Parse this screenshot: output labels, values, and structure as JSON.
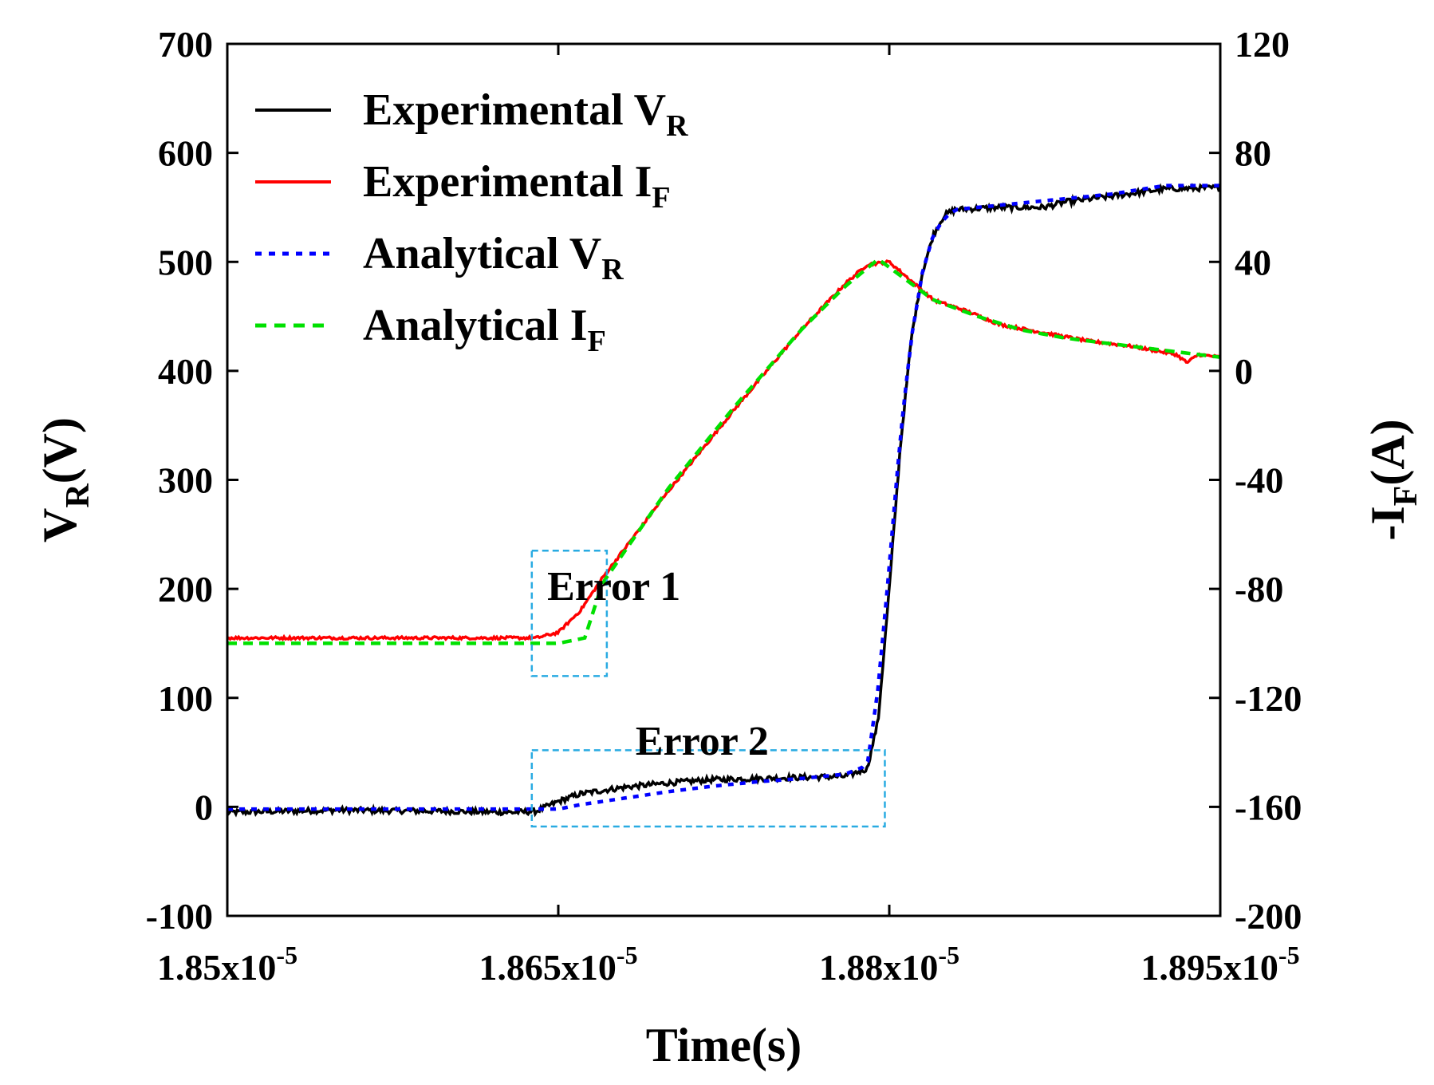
{
  "chart_data": {
    "type": "line",
    "xlabel": "Time(s)",
    "ylabel_left": {
      "main": "V",
      "sub": "R",
      "tail": "(V)"
    },
    "ylabel_right": {
      "main": "-I",
      "sub": "F",
      "tail": "(A)"
    },
    "xlim": [
      1.85e-05,
      1.895e-05
    ],
    "ylim_left": [
      -100,
      700
    ],
    "ylim_right": [
      -200,
      120
    ],
    "x_ticks": [
      {
        "value": 1.85e-05,
        "base": "1.85x10",
        "exp": "-5"
      },
      {
        "value": 1.865e-05,
        "base": "1.865x10",
        "exp": "-5"
      },
      {
        "value": 1.88e-05,
        "base": "1.88x10",
        "exp": "-5"
      },
      {
        "value": 1.895e-05,
        "base": "1.895x10",
        "exp": "-5"
      }
    ],
    "y_left_ticks": [
      {
        "value": -100,
        "label": "-100"
      },
      {
        "value": 0,
        "label": "0"
      },
      {
        "value": 100,
        "label": "100"
      },
      {
        "value": 200,
        "label": "200"
      },
      {
        "value": 300,
        "label": "300"
      },
      {
        "value": 400,
        "label": "400"
      },
      {
        "value": 500,
        "label": "500"
      },
      {
        "value": 600,
        "label": "600"
      },
      {
        "value": 700,
        "label": "700"
      }
    ],
    "y_right_ticks": [
      {
        "value": -200,
        "label": "-200"
      },
      {
        "value": -160,
        "label": "-160"
      },
      {
        "value": -120,
        "label": "-120"
      },
      {
        "value": -80,
        "label": "-80"
      },
      {
        "value": -40,
        "label": "-40"
      },
      {
        "value": 0,
        "label": "0"
      },
      {
        "value": 40,
        "label": "40"
      },
      {
        "value": 80,
        "label": "80"
      },
      {
        "value": 120,
        "label": "120"
      }
    ],
    "legend_position": "top-left",
    "series": [
      {
        "name": "Experimental V",
        "sub": "R",
        "axis": "left",
        "color": "#000000",
        "dash": "solid",
        "noise": 2.5,
        "x": [
          1.85e-05,
          1.855e-05,
          1.86e-05,
          1.863e-05,
          1.864e-05,
          1.865e-05,
          1.866e-05,
          1.868e-05,
          1.87e-05,
          1.872e-05,
          1.874e-05,
          1.876e-05,
          1.878e-05,
          1.879e-05,
          1.8795e-05,
          1.88e-05,
          1.8805e-05,
          1.881e-05,
          1.8815e-05,
          1.882e-05,
          1.8825e-05,
          1.883e-05,
          1.885e-05,
          1.887e-05,
          1.888e-05,
          1.89e-05,
          1.8925e-05,
          1.895e-05
        ],
        "y": [
          -5,
          -3,
          -4,
          -5,
          -4,
          5,
          12,
          18,
          22,
          25,
          26,
          27,
          28,
          35,
          80,
          200,
          330,
          430,
          490,
          525,
          543,
          548,
          550,
          550,
          555,
          560,
          567,
          568
        ]
      },
      {
        "name": "Experimental  I",
        "sub": "F",
        "axis": "right",
        "color": "#ff0000",
        "dash": "solid",
        "noise": 0.5,
        "x": [
          1.85e-05,
          1.86e-05,
          1.864e-05,
          1.865e-05,
          1.866e-05,
          1.867e-05,
          1.87e-05,
          1.873e-05,
          1.876e-05,
          1.878e-05,
          1.879e-05,
          1.88e-05,
          1.881e-05,
          1.882e-05,
          1.8835e-05,
          1.885e-05,
          1.887e-05,
          1.889e-05,
          1.891e-05,
          1.893e-05,
          1.8935e-05,
          1.894e-05,
          1.895e-05
        ],
        "y": [
          -98,
          -98,
          -98,
          -96,
          -88,
          -76,
          -44,
          -14,
          15,
          32,
          39,
          40,
          33,
          26,
          22,
          17,
          14,
          11,
          9,
          6,
          3,
          6,
          5
        ]
      },
      {
        "name": "Analytical V",
        "sub": "R",
        "axis": "left",
        "color": "#0000ff",
        "dash": "dotted",
        "noise": 0,
        "x": [
          1.85e-05,
          1.865e-05,
          1.866e-05,
          1.868e-05,
          1.87e-05,
          1.872e-05,
          1.874e-05,
          1.876e-05,
          1.878e-05,
          1.879e-05,
          1.8795e-05,
          1.88e-05,
          1.8805e-05,
          1.881e-05,
          1.8815e-05,
          1.882e-05,
          1.8825e-05,
          1.883e-05,
          1.885e-05,
          1.887e-05,
          1.89e-05,
          1.8925e-05,
          1.895e-05
        ],
        "y": [
          -2,
          -2,
          2,
          8,
          14,
          19,
          23,
          26,
          30,
          38,
          110,
          220,
          340,
          430,
          490,
          525,
          540,
          548,
          552,
          556,
          562,
          570,
          570
        ]
      },
      {
        "name": "Analytical I",
        "sub": "F",
        "axis": "right",
        "color": "#00e000",
        "dash": "dashed",
        "noise": 0,
        "x": [
          1.85e-05,
          1.86e-05,
          1.865e-05,
          1.8662e-05,
          1.867e-05,
          1.87e-05,
          1.873e-05,
          1.876e-05,
          1.878e-05,
          1.8795e-05,
          1.881e-05,
          1.882e-05,
          1.884e-05,
          1.886e-05,
          1.888e-05,
          1.89e-05,
          1.892e-05,
          1.894e-05,
          1.895e-05
        ],
        "y": [
          -100,
          -100,
          -100,
          -98,
          -78,
          -43,
          -13,
          15,
          31,
          41,
          32,
          26,
          20,
          15,
          12,
          10,
          8,
          6,
          5
        ]
      }
    ],
    "annotations": [
      {
        "label": "Error 1",
        "x_range": [
          1.8638e-05,
          1.8672e-05
        ],
        "y_range": [
          120,
          235
        ],
        "text_x": 1.8645e-05,
        "text_y": 190
      },
      {
        "label": "Error 2",
        "x_range": [
          1.8638e-05,
          1.8798e-05
        ],
        "y_range": [
          -18,
          52
        ],
        "text_x": 1.8685e-05,
        "text_y": 48
      }
    ],
    "annotation_color": "#29abe2"
  }
}
